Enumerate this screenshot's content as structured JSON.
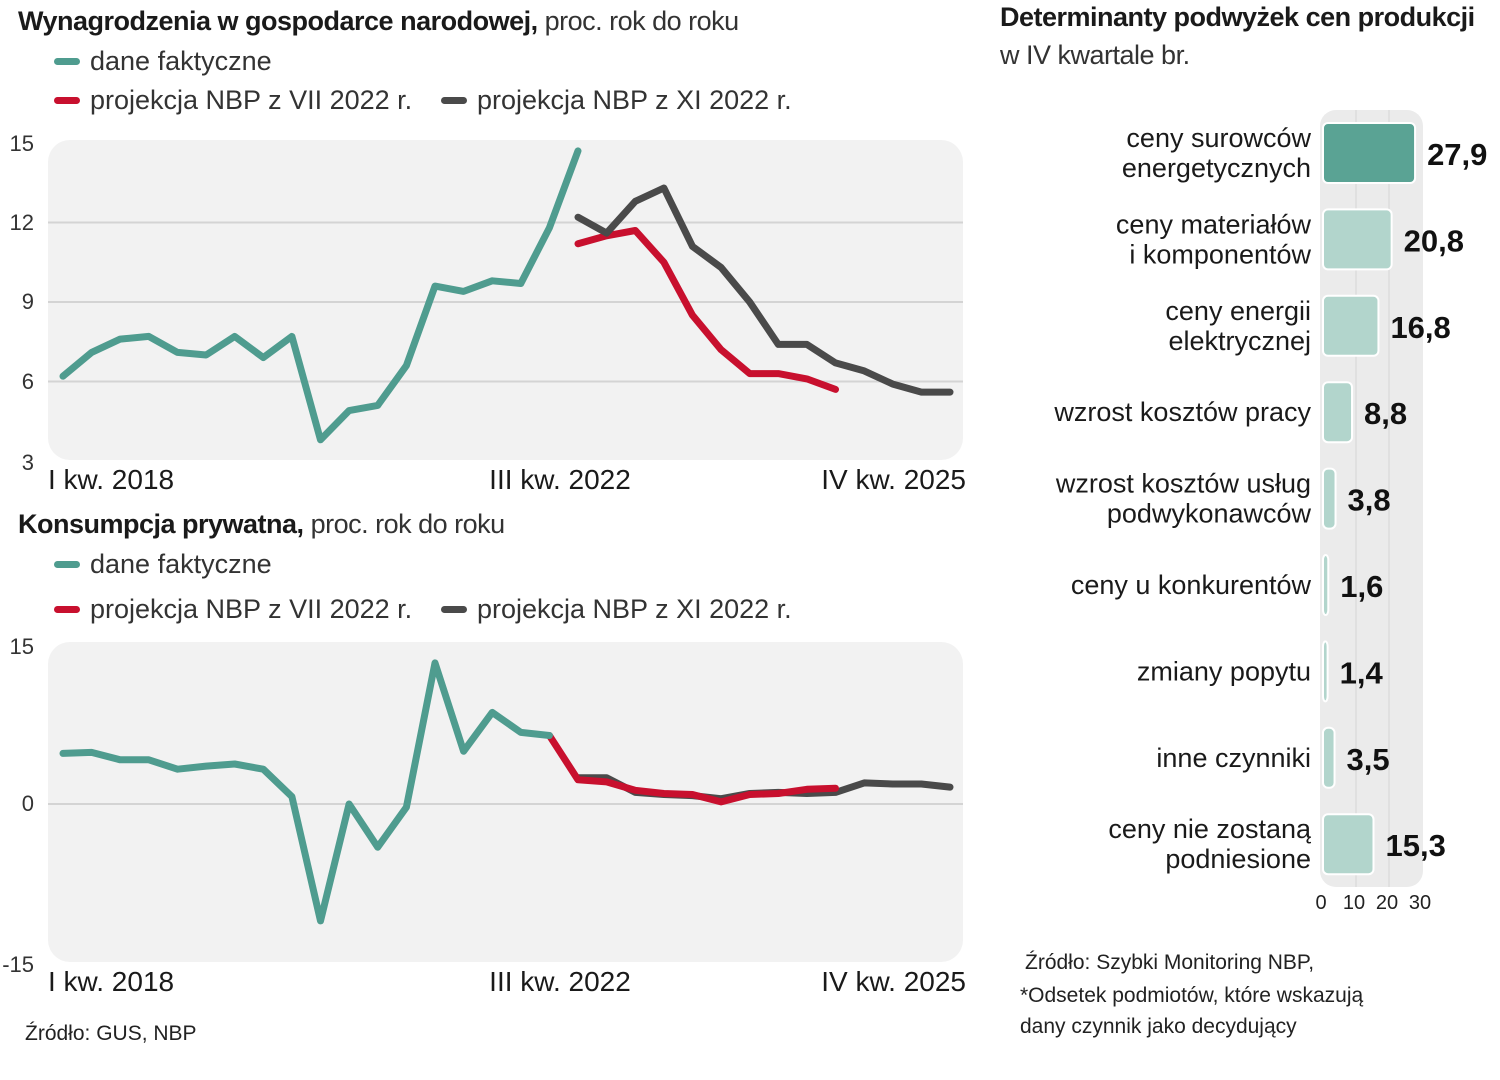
{
  "legend": {
    "actual": "dane faktyczne",
    "proj_vii": "projekcja NBP z VII 2022 r.",
    "proj_xi": "projekcja NBP z XI 2022 r."
  },
  "colors": {
    "actual": "#4f9c8f",
    "proj_vii": "#c8102e",
    "proj_xi": "#4a4a4a",
    "bar_top": "#5aa394",
    "bar": "#b2d5cc",
    "panel": "#f1f1f1"
  },
  "left_source": "Źródło: GUS, NBP",
  "right_source": [
    "Źródło: Szybki Monitoring NBP,",
    "*Odsetek podmiotów, które wskazują",
    "dany czynnik jako decydujący"
  ],
  "chart_data": [
    {
      "type": "line",
      "title": "Wynagrodzenia w gospodarce narodowej,",
      "subtitle": " proc. rok do roku",
      "ylim": [
        3,
        15
      ],
      "yticks": [
        "15",
        "12",
        "9",
        "6",
        "3"
      ],
      "ytick_values": [
        15,
        12,
        9,
        6,
        3
      ],
      "grid": [
        12,
        9,
        6
      ],
      "x_range": [
        "2018 Q1",
        "2025 Q4"
      ],
      "xticks": [
        "I kw. 2018",
        "III kw. 2022",
        "IV kw. 2025"
      ],
      "series": [
        {
          "name": "dane faktyczne",
          "key": "actual",
          "start": "2018 Q1",
          "values": [
            6.2,
            7.1,
            7.6,
            7.7,
            7.1,
            7.0,
            7.7,
            6.9,
            7.7,
            3.8,
            4.9,
            5.1,
            6.6,
            9.6,
            9.4,
            9.8,
            9.7,
            11.8,
            14.7
          ]
        },
        {
          "name": "projekcja NBP z VII 2022 r.",
          "key": "proj_vii",
          "start": "2022 Q3",
          "values": [
            11.2,
            11.5,
            11.7,
            10.5,
            8.5,
            7.2,
            6.3,
            6.3,
            6.1,
            5.7
          ]
        },
        {
          "name": "projekcja NBP z XI 2022 r.",
          "key": "proj_xi",
          "start": "2022 Q3",
          "values": [
            12.2,
            11.6,
            12.8,
            13.3,
            11.1,
            10.3,
            9.0,
            7.4,
            7.4,
            6.7,
            6.4,
            5.9,
            5.6,
            5.6
          ]
        }
      ]
    },
    {
      "type": "line",
      "title": "Konsumpcja prywatna,",
      "subtitle": " proc. rok do roku",
      "ylim": [
        -15,
        15
      ],
      "yticks": [
        "15",
        "0",
        "-15"
      ],
      "ytick_values": [
        15,
        0,
        -15
      ],
      "grid": [
        0
      ],
      "x_range": [
        "2018 Q1",
        "2025 Q4"
      ],
      "xticks": [
        "I kw. 2018",
        "III kw. 2022",
        "IV kw. 2025"
      ],
      "series": [
        {
          "name": "projekcja NBP z XI 2022 r.",
          "key": "proj_xi",
          "start": "2022 Q3",
          "values": [
            2.5,
            2.5,
            1.1,
            0.9,
            0.8,
            0.5,
            1.0,
            1.1,
            1.0,
            1.1,
            2.0,
            1.9,
            1.9,
            1.6
          ]
        },
        {
          "name": "projekcja NBP z VII 2022 r.",
          "key": "proj_vii",
          "start": "2022 Q2",
          "values": [
            6.5,
            2.3,
            2.1,
            1.3,
            1.0,
            0.9,
            0.2,
            0.9,
            1.0,
            1.4,
            1.5
          ]
        },
        {
          "name": "dane faktyczne",
          "key": "actual",
          "start": "2018 Q1",
          "values": [
            4.8,
            4.9,
            4.2,
            4.2,
            3.3,
            3.6,
            3.8,
            3.3,
            0.7,
            -11.1,
            0,
            -4.1,
            -0.3,
            13.4,
            5.0,
            8.7,
            6.8,
            6.5
          ]
        }
      ]
    },
    {
      "type": "bar",
      "title": "Determinanty podwyżek cen produkcji",
      "subtitle": "w IV kwartale br.",
      "xlim": [
        0,
        30
      ],
      "xticks": [
        "0",
        "10",
        "20",
        "30"
      ],
      "xtick_values": [
        0,
        10,
        20,
        30
      ],
      "categories": [
        [
          "ceny surowców",
          "energetycznych"
        ],
        [
          "ceny materiałów",
          "i komponentów"
        ],
        [
          "ceny energii",
          "elektrycznej"
        ],
        [
          "wzrost kosztów pracy"
        ],
        [
          "wzrost kosztów usług",
          "podwykonawców"
        ],
        [
          "ceny u konkurentów"
        ],
        [
          "zmiany popytu"
        ],
        [
          "inne czynniki"
        ],
        [
          "ceny nie zostaną",
          "podniesione"
        ]
      ],
      "values": [
        27.9,
        20.8,
        16.8,
        8.8,
        3.8,
        1.6,
        1.4,
        3.5,
        15.3
      ],
      "value_labels": [
        "27,9",
        "20,8",
        "16,8",
        "8,8",
        "3,8",
        "1,6",
        "1,4",
        "3,5",
        "15,3"
      ]
    }
  ]
}
